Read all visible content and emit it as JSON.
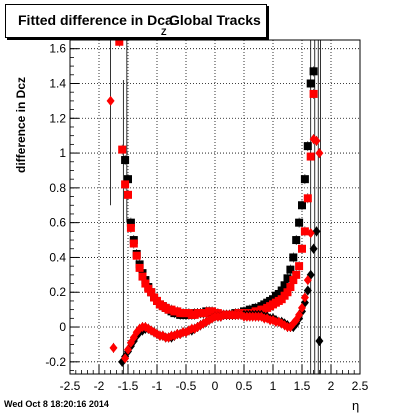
{
  "title": {
    "part1": "Fitted difference in Dca",
    "subscript": "Z",
    "part2": "Global Tracks"
  },
  "footer": "Wed Oct  8 18:20:16 2014",
  "chart_data": {
    "type": "scatter",
    "title": "Fitted difference in Dca Z Global Tracks",
    "xlabel": "η",
    "ylabel": "difference in Dcz",
    "xlim": [
      -2.5,
      2.5
    ],
    "ylim": [
      -0.27,
      1.65
    ],
    "xticks": [
      "-2.5",
      "-2",
      "-1.5",
      "-1",
      "-0.5",
      "0",
      "0.5",
      "1",
      "1.5",
      "2",
      "2.5"
    ],
    "xtick_values": [
      -2.5,
      -2,
      -1.5,
      -1,
      -0.5,
      0,
      0.5,
      1,
      1.5,
      2,
      2.5
    ],
    "yticks": [
      "-0.2",
      "0",
      "0.2",
      "0.4",
      "0.6",
      "0.8",
      "1",
      "1.2",
      "1.4",
      "1.6"
    ],
    "ytick_values": [
      -0.2,
      0,
      0.2,
      0.4,
      0.6,
      0.8,
      1,
      1.2,
      1.4,
      1.6
    ],
    "grid": true,
    "colors": {
      "black_series": "#000000",
      "red_series": "#ff0000"
    },
    "series": [
      {
        "marker": "square",
        "color": "#000000",
        "x": [
          -1.55,
          -1.5,
          -1.45,
          -1.4,
          -1.35,
          -1.3,
          -1.25,
          -1.2,
          -1.15,
          -1.1,
          -1.05,
          -1.0,
          -0.95,
          -0.9,
          -0.85,
          -0.8,
          -0.75,
          -0.7,
          -0.65,
          -0.6,
          -0.55,
          -0.5,
          -0.45,
          -0.4,
          -0.35,
          -0.3,
          -0.25,
          -0.2,
          -0.15,
          -0.1,
          -0.05,
          0.0,
          0.05,
          0.1,
          0.15,
          0.2,
          0.25,
          0.3,
          0.35,
          0.4,
          0.45,
          0.5,
          0.55,
          0.6,
          0.65,
          0.7,
          0.75,
          0.8,
          0.85,
          0.9,
          0.95,
          1.0,
          1.05,
          1.1,
          1.15,
          1.2,
          1.25,
          1.3,
          1.35,
          1.4,
          1.45,
          1.5,
          1.55,
          1.6,
          1.65,
          1.7
        ],
        "y": [
          0.96,
          0.85,
          0.6,
          0.5,
          0.42,
          0.36,
          0.31,
          0.27,
          0.23,
          0.2,
          0.17,
          0.15,
          0.13,
          0.12,
          0.11,
          0.1,
          0.09,
          0.08,
          0.08,
          0.07,
          0.07,
          0.07,
          0.07,
          0.07,
          0.08,
          0.08,
          0.08,
          0.08,
          0.09,
          0.09,
          0.08,
          0.08,
          0.07,
          0.07,
          0.07,
          0.07,
          0.07,
          0.07,
          0.08,
          0.08,
          0.08,
          0.09,
          0.09,
          0.1,
          0.1,
          0.11,
          0.11,
          0.12,
          0.13,
          0.14,
          0.15,
          0.16,
          0.18,
          0.19,
          0.21,
          0.24,
          0.28,
          0.33,
          0.4,
          0.5,
          0.6,
          0.7,
          0.85,
          1.04,
          1.4,
          1.47
        ]
      },
      {
        "marker": "square",
        "color": "#ff0000",
        "x": [
          -1.65,
          -1.6,
          -1.55,
          -1.5,
          -1.45,
          -1.4,
          -1.35,
          -1.3,
          -1.25,
          -1.2,
          -1.15,
          -1.1,
          -1.05,
          -1.0,
          -0.95,
          -0.9,
          -0.85,
          -0.8,
          -0.75,
          -0.7,
          -0.65,
          -0.6,
          -0.55,
          -0.5,
          -0.45,
          -0.4,
          -0.35,
          -0.3,
          -0.25,
          -0.2,
          -0.15,
          -0.1,
          -0.05,
          0.0,
          0.05,
          0.1,
          0.15,
          0.2,
          0.25,
          0.3,
          0.35,
          0.4,
          0.45,
          0.5,
          0.55,
          0.6,
          0.65,
          0.7,
          0.75,
          0.8,
          0.85,
          0.9,
          0.95,
          1.0,
          1.05,
          1.1,
          1.15,
          1.2,
          1.25,
          1.3,
          1.35,
          1.4,
          1.45,
          1.5,
          1.55,
          1.6,
          1.65,
          1.7
        ],
        "y": [
          1.64,
          1.02,
          0.82,
          0.76,
          0.57,
          0.48,
          0.41,
          0.34,
          0.29,
          0.25,
          0.22,
          0.2,
          0.17,
          0.15,
          0.13,
          0.12,
          0.11,
          0.1,
          0.1,
          0.09,
          0.09,
          0.08,
          0.08,
          0.08,
          0.08,
          0.07,
          0.07,
          0.08,
          0.08,
          0.08,
          0.08,
          0.09,
          0.09,
          0.08,
          0.08,
          0.07,
          0.07,
          0.07,
          0.07,
          0.07,
          0.07,
          0.08,
          0.08,
          0.08,
          0.08,
          0.08,
          0.08,
          0.09,
          0.09,
          0.1,
          0.1,
          0.11,
          0.12,
          0.13,
          0.14,
          0.15,
          0.16,
          0.18,
          0.2,
          0.23,
          0.27,
          0.3,
          0.35,
          0.45,
          0.55,
          0.74,
          0.98,
          1.34
        ]
      },
      {
        "marker": "diamond",
        "color": "#000000",
        "x": [
          -1.6,
          -1.55,
          -1.5,
          -1.45,
          -1.4,
          -1.35,
          -1.3,
          -1.25,
          -1.2,
          -1.15,
          -1.1,
          -1.05,
          -1.0,
          -0.95,
          -0.9,
          -0.85,
          -0.8,
          -0.75,
          -0.7,
          -0.65,
          -0.6,
          -0.55,
          -0.5,
          -0.45,
          -0.4,
          -0.35,
          -0.3,
          -0.25,
          -0.2,
          -0.15,
          -0.1,
          -0.05,
          0.0,
          0.05,
          0.1,
          0.15,
          0.2,
          0.25,
          0.3,
          0.35,
          0.4,
          0.45,
          0.5,
          0.55,
          0.6,
          0.65,
          0.7,
          0.75,
          0.8,
          0.85,
          0.9,
          0.95,
          1.0,
          1.05,
          1.1,
          1.15,
          1.2,
          1.25,
          1.3,
          1.35,
          1.4,
          1.45,
          1.5,
          1.55,
          1.6,
          1.65,
          1.7,
          1.75,
          1.8
        ],
        "y": [
          -0.2,
          -0.17,
          -0.14,
          -0.11,
          -0.08,
          -0.05,
          -0.03,
          -0.02,
          -0.01,
          -0.01,
          -0.02,
          -0.03,
          -0.04,
          -0.05,
          -0.05,
          -0.06,
          -0.06,
          -0.06,
          -0.05,
          -0.04,
          -0.04,
          -0.03,
          -0.03,
          -0.02,
          -0.02,
          -0.01,
          0.0,
          0.01,
          0.02,
          0.03,
          0.04,
          0.05,
          0.06,
          0.06,
          0.06,
          0.07,
          0.07,
          0.07,
          0.07,
          0.07,
          0.07,
          0.07,
          0.07,
          0.07,
          0.07,
          0.07,
          0.07,
          0.07,
          0.07,
          0.06,
          0.06,
          0.05,
          0.05,
          0.04,
          0.03,
          0.03,
          0.02,
          0.01,
          0.0,
          0.0,
          0.02,
          0.05,
          0.09,
          0.14,
          0.21,
          0.3,
          0.45,
          0.55,
          -0.08
        ]
      },
      {
        "marker": "diamond",
        "color": "#ff0000",
        "x": [
          -1.8,
          -1.75,
          -1.55,
          -1.5,
          -1.45,
          -1.4,
          -1.35,
          -1.3,
          -1.25,
          -1.2,
          -1.15,
          -1.1,
          -1.05,
          -1.0,
          -0.95,
          -0.9,
          -0.85,
          -0.8,
          -0.75,
          -0.7,
          -0.65,
          -0.6,
          -0.55,
          -0.5,
          -0.45,
          -0.4,
          -0.35,
          -0.3,
          -0.25,
          -0.2,
          -0.15,
          -0.1,
          -0.05,
          0.0,
          0.05,
          0.1,
          0.15,
          0.2,
          0.25,
          0.3,
          0.35,
          0.4,
          0.45,
          0.5,
          0.55,
          0.6,
          0.65,
          0.7,
          0.75,
          0.8,
          0.85,
          0.9,
          0.95,
          1.0,
          1.05,
          1.1,
          1.15,
          1.2,
          1.25,
          1.3,
          1.35,
          1.4,
          1.45,
          1.5,
          1.55,
          1.6,
          1.65,
          1.7,
          1.75,
          1.8
        ],
        "y": [
          1.3,
          -0.12,
          -0.18,
          -0.13,
          -0.09,
          -0.06,
          -0.03,
          -0.01,
          0.0,
          0.0,
          -0.01,
          -0.02,
          -0.03,
          -0.04,
          -0.05,
          -0.05,
          -0.06,
          -0.06,
          -0.05,
          -0.05,
          -0.04,
          -0.04,
          -0.03,
          -0.03,
          -0.02,
          -0.01,
          -0.01,
          0.0,
          0.01,
          0.02,
          0.03,
          0.04,
          0.05,
          0.06,
          0.06,
          0.06,
          0.07,
          0.07,
          0.07,
          0.07,
          0.07,
          0.07,
          0.07,
          0.06,
          0.06,
          0.06,
          0.06,
          0.06,
          0.06,
          0.06,
          0.05,
          0.05,
          0.04,
          0.04,
          0.03,
          0.03,
          0.02,
          0.01,
          0.0,
          0.0,
          0.02,
          0.04,
          0.07,
          0.11,
          0.17,
          0.27,
          0.54,
          1.08,
          1.07,
          1.0
        ]
      }
    ]
  }
}
